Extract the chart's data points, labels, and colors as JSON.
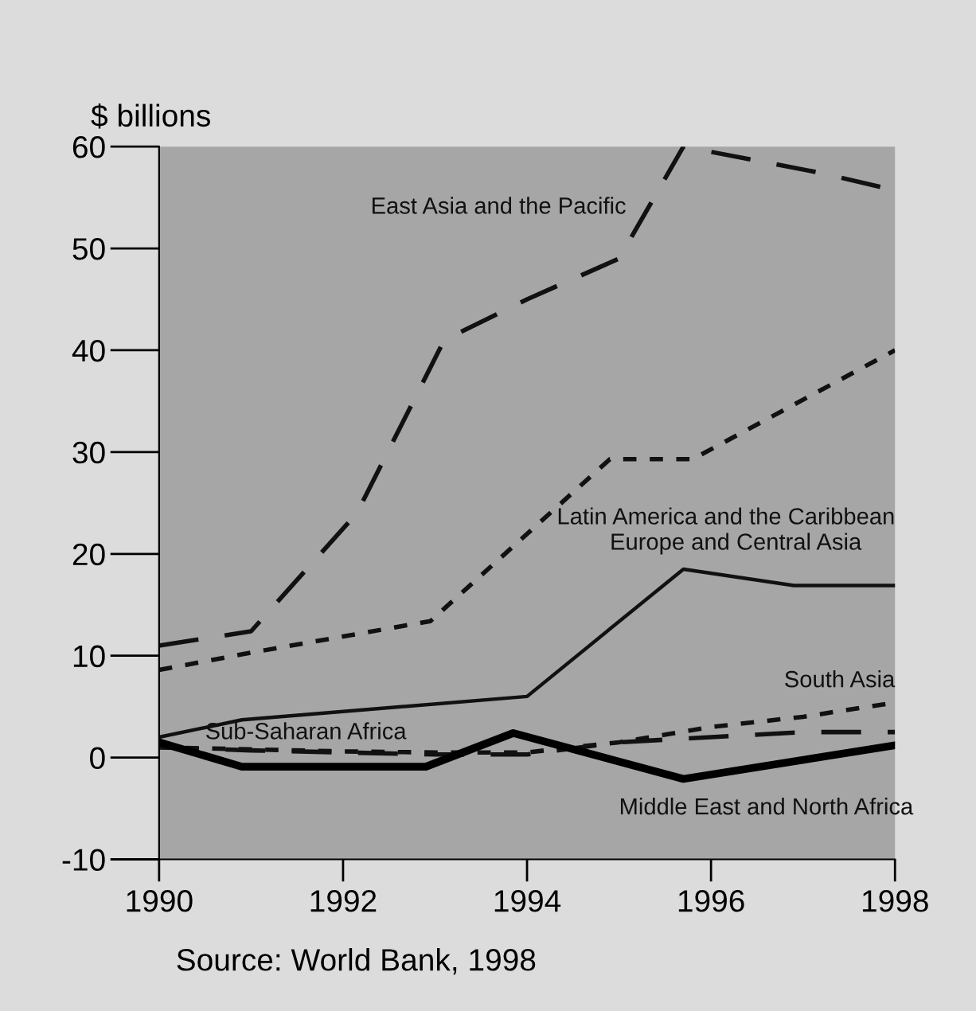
{
  "chart_data": {
    "type": "line",
    "ylabel": "$ billions",
    "series": [
      {
        "name": "East Asia and the Pacific",
        "color": "#111111",
        "line_style": "dashed",
        "x": [
          1990,
          1991,
          1992.15,
          1993.1,
          1994,
          1995,
          1995.7,
          1997.2,
          1998
        ],
        "values": [
          11,
          12.4,
          24,
          41,
          45,
          49,
          60,
          57.4,
          55.7
        ]
      },
      {
        "name": "Latin America and the Caribbean",
        "color": "#111111",
        "line_style": "dotted",
        "x": [
          1990,
          1991,
          1992.95,
          1994.9,
          1995.8,
          1998
        ],
        "values": [
          8.6,
          10.3,
          13.4,
          29.3,
          29.3,
          40
        ]
      },
      {
        "name": "Europe and Central Asia",
        "color": "#111111",
        "line_style": "solid",
        "x": [
          1990,
          1990.9,
          1994,
          1995.7,
          1996.9,
          1998
        ],
        "values": [
          2,
          3.7,
          6,
          18.5,
          16.9,
          16.9
        ]
      },
      {
        "name": "South Asia",
        "color": "#111111",
        "line_style": "dotted",
        "x": [
          1990,
          1991,
          1992,
          1993,
          1994,
          1995,
          1996,
          1997,
          1998
        ],
        "values": [
          1,
          0.8,
          0.6,
          0.5,
          0.5,
          1.5,
          3,
          4,
          5.4
        ]
      },
      {
        "name": "Sub-Saharan Africa",
        "color": "#111111",
        "line_style": "dashed",
        "x": [
          1990,
          1991,
          1992,
          1993,
          1994,
          1995,
          1996,
          1997,
          1998
        ],
        "values": [
          1,
          0.7,
          0.5,
          0.3,
          0.3,
          1.5,
          2,
          2.5,
          2.5
        ]
      },
      {
        "name": "Middle East and North Africa",
        "color": "#000000",
        "line_style": "solid",
        "x": [
          1990,
          1990.9,
          1992.9,
          1993.85,
          1995.7,
          1998
        ],
        "values": [
          1.5,
          -0.9,
          -0.9,
          2.4,
          -2.1,
          1.2
        ]
      }
    ],
    "xlim": [
      1990,
      1998
    ],
    "xticks": [
      1990,
      1992,
      1994,
      1996,
      1998
    ],
    "ylim": [
      -10,
      60
    ],
    "yticks": [
      -10,
      0,
      10,
      20,
      30,
      40,
      50,
      60
    ],
    "grid": false,
    "legend": false,
    "annotations": [
      "Source: World Bank, 1998"
    ]
  }
}
